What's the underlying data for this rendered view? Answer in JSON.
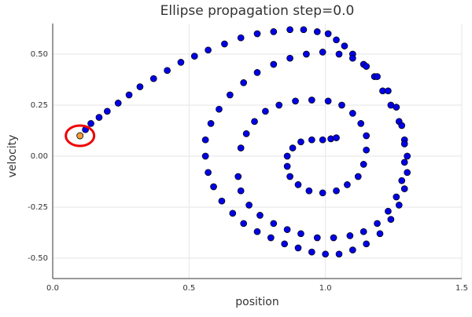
{
  "chart_data": {
    "type": "scatter",
    "title": "Ellipse propagation step=0.0",
    "xlabel": "position",
    "ylabel": "velocity",
    "color": "#0000e6",
    "grid": true,
    "xlim": [
      0,
      1.5
    ],
    "ylim": [
      -0.6,
      0.65
    ],
    "xticks": [
      {
        "value": 0,
        "label": "0.0"
      },
      0.5,
      {
        "value": 1,
        "label": "1.0"
      },
      1.5
    ],
    "yticks": [
      {
        "value": -0.5,
        "label": "-0.50"
      },
      -0.25,
      {
        "value": 0,
        "label": "0.00"
      },
      0.25,
      {
        "value": 0.5,
        "label": "0.50"
      }
    ],
    "x": [
      0.1,
      0.12,
      0.14,
      0.17,
      0.2,
      0.24,
      0.28,
      0.32,
      0.37,
      0.42,
      0.47,
      0.52,
      0.57,
      0.63,
      0.69,
      0.75,
      0.81,
      0.87,
      0.92,
      0.97,
      1.01,
      1.04,
      1.07,
      1.1,
      1.14,
      1.18,
      1.21,
      1.24,
      1.27,
      1.29,
      1.3,
      1.3,
      1.29,
      1.27,
      1.24,
      1.2,
      1.15,
      1.1,
      1.05,
      1,
      0.95,
      0.9,
      0.85,
      0.8,
      0.75,
      0.7,
      0.66,
      0.62,
      0.59,
      0.57,
      0.56,
      0.56,
      0.58,
      0.61,
      0.65,
      0.7,
      0.75,
      0.81,
      0.87,
      0.93,
      0.99,
      1.05,
      1.1,
      1.15,
      1.19,
      1.23,
      1.26,
      1.28,
      1.29,
      1.29,
      1.28,
      1.26,
      1.23,
      1.19,
      1.14,
      1.09,
      1.03,
      0.97,
      0.91,
      0.86,
      0.81,
      0.76,
      0.72,
      0.69,
      0.68,
      0.69,
      0.71,
      0.74,
      0.78,
      0.83,
      0.89,
      0.95,
      1.01,
      1.06,
      1.1,
      1.13,
      1.15,
      1.15,
      1.14,
      1.12,
      1.08,
      1.04,
      0.99,
      0.94,
      0.9,
      0.87,
      0.86,
      0.86,
      0.88,
      0.91,
      0.95,
      0.99,
      1.02,
      1.04
    ],
    "values": [
      0.1,
      0.13,
      0.16,
      0.19,
      0.22,
      0.26,
      0.3,
      0.34,
      0.38,
      0.42,
      0.46,
      0.49,
      0.52,
      0.55,
      0.58,
      0.6,
      0.61,
      0.62,
      0.62,
      0.61,
      0.6,
      0.57,
      0.54,
      0.5,
      0.45,
      0.39,
      0.32,
      0.25,
      0.17,
      0.08,
      0,
      -0.08,
      -0.16,
      -0.24,
      -0.31,
      -0.38,
      -0.43,
      -0.46,
      -0.48,
      -0.48,
      -0.47,
      -0.45,
      -0.43,
      -0.4,
      -0.37,
      -0.33,
      -0.28,
      -0.22,
      -0.15,
      -0.08,
      0,
      0.08,
      0.16,
      0.23,
      0.3,
      0.36,
      0.41,
      0.45,
      0.48,
      0.5,
      0.51,
      0.5,
      0.48,
      0.44,
      0.39,
      0.32,
      0.24,
      0.15,
      0.06,
      -0.03,
      -0.12,
      -0.2,
      -0.27,
      -0.33,
      -0.37,
      -0.39,
      -0.4,
      -0.4,
      -0.38,
      -0.36,
      -0.33,
      -0.29,
      -0.24,
      -0.17,
      -0.1,
      0.04,
      0.11,
      0.17,
      0.22,
      0.25,
      0.27,
      0.275,
      0.27,
      0.25,
      0.21,
      0.16,
      0.1,
      0.03,
      -0.04,
      -0.1,
      -0.14,
      -0.17,
      -0.18,
      -0.17,
      -0.14,
      -0.1,
      -0.05,
      0,
      0.04,
      0.07,
      0.08,
      0.08,
      0.085,
      0.09
    ],
    "highlight": {
      "x": 0.1,
      "y": 0.1,
      "color": "#f39c3c"
    }
  }
}
